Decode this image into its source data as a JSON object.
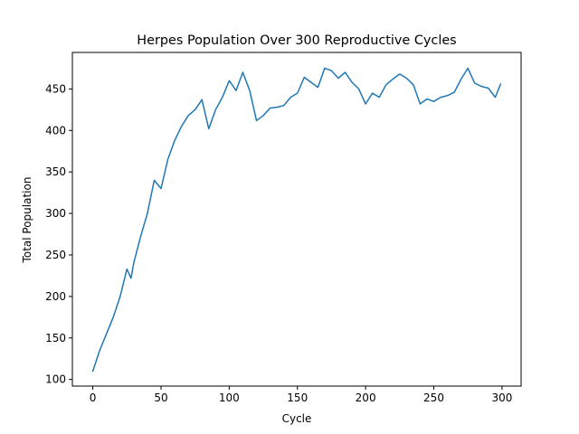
{
  "chart_data": {
    "type": "line",
    "title": "Herpes Population Over 300 Reproductive Cycles",
    "xlabel": "Cycle",
    "ylabel": "Total Population",
    "xlim": [
      -15,
      314
    ],
    "ylim": [
      92,
      494
    ],
    "xticks": [
      0,
      50,
      100,
      150,
      200,
      250,
      300
    ],
    "yticks": [
      100,
      150,
      200,
      250,
      300,
      350,
      400,
      450
    ],
    "grid": false,
    "legend": "none",
    "colors": {
      "series": "#1f77b4",
      "axes": "#000000",
      "background": "#ffffff"
    },
    "series": [
      {
        "x": [
          0,
          5,
          10,
          15,
          20,
          25,
          28,
          30,
          35,
          40,
          45,
          50,
          55,
          60,
          65,
          70,
          75,
          80,
          85,
          90,
          95,
          100,
          105,
          110,
          115,
          120,
          125,
          130,
          135,
          140,
          145,
          150,
          155,
          160,
          165,
          170,
          175,
          180,
          185,
          190,
          195,
          200,
          205,
          210,
          215,
          220,
          225,
          230,
          235,
          240,
          245,
          250,
          255,
          260,
          265,
          270,
          275,
          280,
          285,
          290,
          295,
          299
        ],
        "values": [
          110,
          135,
          155,
          175,
          200,
          233,
          222,
          240,
          272,
          300,
          340,
          330,
          365,
          388,
          405,
          418,
          425,
          437,
          402,
          425,
          440,
          460,
          448,
          470,
          448,
          412,
          418,
          427,
          428,
          430,
          440,
          445,
          464,
          458,
          452,
          475,
          472,
          463,
          470,
          458,
          450,
          432,
          445,
          440,
          455,
          462,
          468,
          463,
          455,
          432,
          438,
          435,
          440,
          442,
          446,
          462,
          475,
          457,
          453,
          451,
          440,
          456
        ]
      }
    ]
  }
}
